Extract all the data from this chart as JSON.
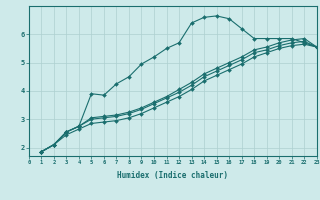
{
  "xlabel": "Humidex (Indice chaleur)",
  "bg_color": "#ceeaea",
  "line_color": "#1a6e6e",
  "grid_color": "#aed0d0",
  "xlim": [
    0,
    23
  ],
  "ylim": [
    1.7,
    7.0
  ],
  "xticks": [
    0,
    1,
    2,
    3,
    4,
    5,
    6,
    7,
    8,
    9,
    10,
    11,
    12,
    13,
    14,
    15,
    16,
    17,
    18,
    19,
    20,
    21,
    22,
    23
  ],
  "yticks": [
    2,
    3,
    4,
    5,
    6
  ],
  "lines": [
    [
      1.85,
      2.1,
      2.55,
      2.75,
      3.9,
      3.85,
      4.25,
      4.5,
      4.95,
      5.2,
      5.5,
      5.7,
      6.4,
      6.6,
      6.65,
      6.55,
      6.2,
      5.85,
      5.85,
      5.85,
      5.85,
      5.7,
      5.55
    ],
    [
      1.85,
      2.1,
      2.55,
      2.75,
      3.05,
      3.1,
      3.15,
      3.25,
      3.4,
      3.6,
      3.8,
      4.05,
      4.3,
      4.6,
      4.8,
      5.0,
      5.2,
      5.45,
      5.55,
      5.7,
      5.8,
      5.85,
      5.55
    ],
    [
      1.85,
      2.1,
      2.55,
      2.75,
      3.0,
      3.05,
      3.1,
      3.2,
      3.35,
      3.55,
      3.75,
      3.95,
      4.2,
      4.5,
      4.7,
      4.9,
      5.1,
      5.35,
      5.45,
      5.6,
      5.7,
      5.75,
      5.55
    ],
    [
      1.85,
      2.1,
      2.45,
      2.65,
      2.85,
      2.9,
      2.95,
      3.05,
      3.2,
      3.4,
      3.6,
      3.8,
      4.05,
      4.35,
      4.55,
      4.75,
      4.95,
      5.2,
      5.35,
      5.5,
      5.6,
      5.65,
      5.55
    ]
  ],
  "line_start_x": 1
}
